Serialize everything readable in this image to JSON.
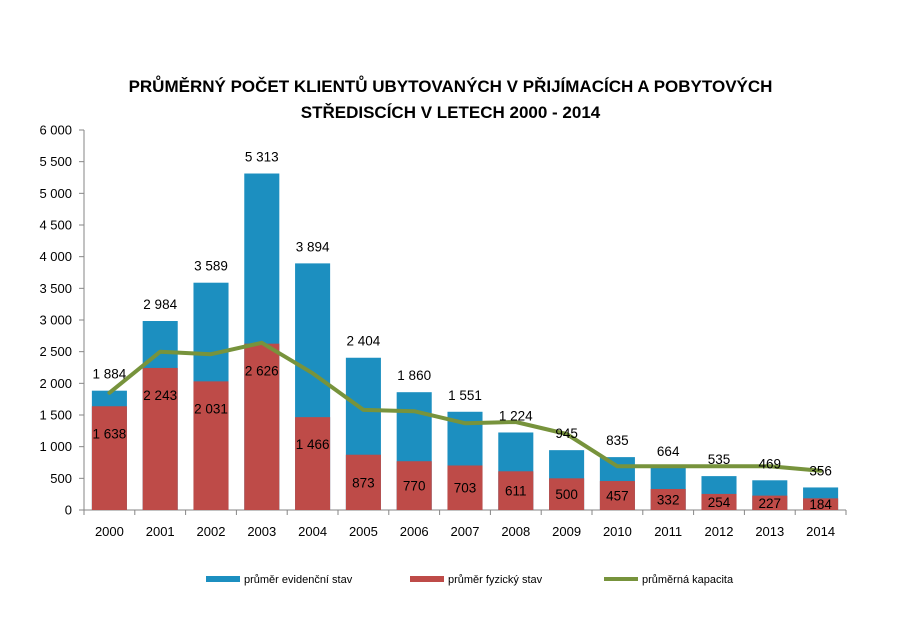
{
  "chart_data": {
    "type": "bar",
    "title_line1": "PRŮMĚRNÝ POČET KLIENTŮ UBYTOVANÝCH V PŘIJÍMACÍCH A POBYTOVÝCH",
    "title_line2": "STŘEDISCÍCH V LETECH 2000 - 2014",
    "categories": [
      "2000",
      "2001",
      "2002",
      "2003",
      "2004",
      "2005",
      "2006",
      "2007",
      "2008",
      "2009",
      "2010",
      "2011",
      "2012",
      "2013",
      "2014"
    ],
    "ylim": [
      0,
      6000
    ],
    "yticks": [
      0,
      500,
      1000,
      1500,
      2000,
      2500,
      3000,
      3500,
      4000,
      4500,
      5000,
      5500,
      6000
    ],
    "ytick_labels": [
      "0",
      "500",
      "1 000",
      "1 500",
      "2 000",
      "2 500",
      "3 000",
      "3 500",
      "4 000",
      "4 500",
      "5 000",
      "5 500",
      "6 000"
    ],
    "grid": false,
    "legend_position": "bottom",
    "series": [
      {
        "name": "průměr evidenční stav",
        "kind": "bar",
        "color": "#1c8fc0",
        "values": [
          1884,
          2984,
          3589,
          5313,
          3894,
          2404,
          1860,
          1551,
          1224,
          945,
          835,
          664,
          535,
          469,
          356
        ],
        "labels": [
          "1 884",
          "2 984",
          "3 589",
          "5 313",
          "3 894",
          "2 404",
          "1 860",
          "1 551",
          "1 224",
          "945",
          "835",
          "664",
          "535",
          "469",
          "356"
        ]
      },
      {
        "name": "průměr fyzický stav",
        "kind": "bar",
        "color": "#be4b48",
        "values": [
          1638,
          2243,
          2031,
          2626,
          1466,
          873,
          770,
          703,
          611,
          500,
          457,
          332,
          254,
          227,
          184
        ],
        "labels": [
          "1 638",
          "2 243",
          "2 031",
          "2 626",
          "1 466",
          "873",
          "770",
          "703",
          "611",
          "500",
          "457",
          "332",
          "254",
          "227",
          "184"
        ]
      },
      {
        "name": "průměrná kapacita",
        "kind": "line",
        "color": "#77933c",
        "values": [
          1850,
          2500,
          2460,
          2640,
          2160,
          1580,
          1560,
          1370,
          1390,
          1200,
          690,
          690,
          690,
          690,
          620
        ]
      }
    ]
  }
}
